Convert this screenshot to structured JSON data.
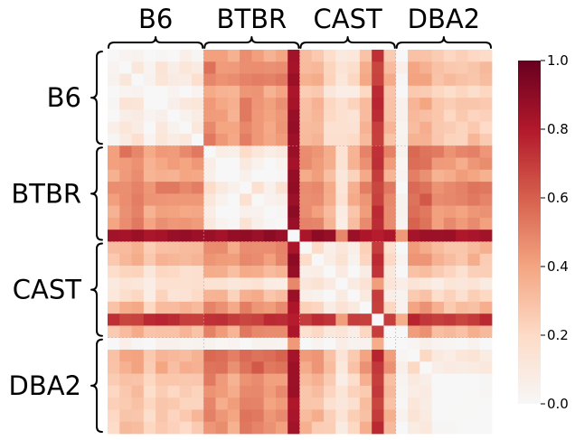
{
  "chart_data": {
    "type": "heatmap",
    "groups": [
      "B6",
      "BTBR",
      "CAST",
      "DBA2"
    ],
    "n_per_group": 8,
    "colormap": "RdBu_r (upper half)",
    "colorbar": {
      "min": 0.0,
      "max": 1.0,
      "ticks": [
        "0.0",
        "0.2",
        "0.4",
        "0.6",
        "0.8",
        "1.0"
      ]
    },
    "color_stops": [
      "#f7f7f7",
      "#fddbc7",
      "#f4a582",
      "#d6604d",
      "#b2182b",
      "#67001f"
    ],
    "group_block_means": [
      [
        0.08,
        0.45,
        0.25,
        0.3
      ],
      [
        0.45,
        0.08,
        0.4,
        0.5
      ],
      [
        0.25,
        0.4,
        0.08,
        0.3
      ],
      [
        0.3,
        0.5,
        0.3,
        0.08
      ]
    ],
    "outlier_samples": [
      {
        "group": "BTBR",
        "index": 7,
        "mean_value": 0.85
      },
      {
        "group": "CAST",
        "index": 6,
        "mean_value": 0.72
      },
      {
        "group": "CAST",
        "index": 3,
        "mean_value": 0.12
      },
      {
        "group": "DBA2",
        "index": 0,
        "mean_value": 0.02
      }
    ],
    "grid": true,
    "legend": "right"
  }
}
